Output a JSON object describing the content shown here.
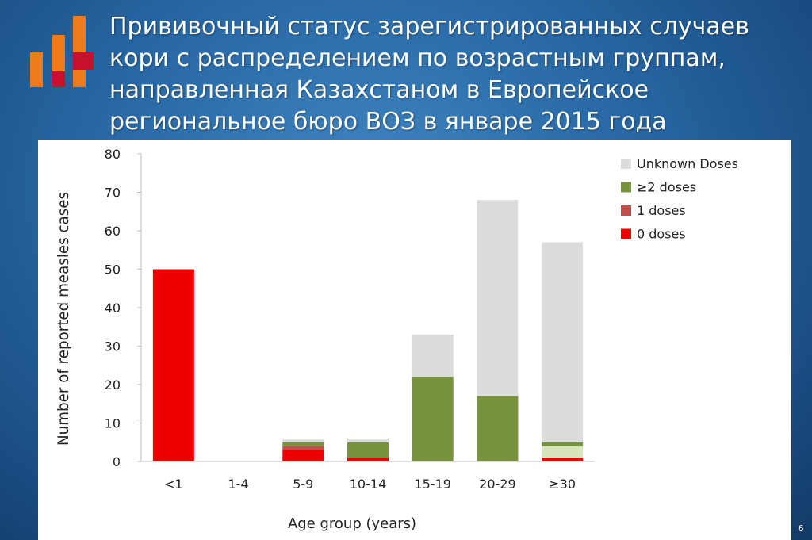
{
  "slide": {
    "title": "Прививочный статус зарегистрированных случаев кори с распределением по возрастным группам, направленная Казахстаном в Европейское региональное бюро ВОЗ  в январе 2015 года",
    "page_number": "6"
  },
  "colors": {
    "unknown": "#dcdcdc",
    "two_doses": "#77933c",
    "one_dose": "#c0504d",
    "zero_doses": "#ee0000",
    "light_green": "#d7e4bd",
    "axis": "#bfbfbf",
    "logo_orange": "#f07b1a",
    "logo_red": "#c8102e"
  },
  "chart_data": {
    "type": "bar",
    "stacked": true,
    "title": "",
    "xlabel": "Age group (years)",
    "ylabel": "Number of reported measles cases",
    "ylim": [
      0,
      80
    ],
    "yticks": [
      0,
      10,
      20,
      30,
      40,
      50,
      60,
      70,
      80
    ],
    "grid": false,
    "legend_position": "top-right",
    "categories": [
      "<1",
      "1-4",
      "5-9",
      "10-14",
      "15-19",
      "20-29",
      "≥30"
    ],
    "series": [
      {
        "name": "0 doses",
        "color": "#ee0000",
        "values": [
          50,
          0,
          3,
          1,
          0,
          0,
          1
        ]
      },
      {
        "name": "1 doses",
        "color": "#c0504d",
        "values": [
          0,
          0,
          1,
          0,
          0,
          0,
          0
        ]
      },
      {
        "name": "",
        "color": "#d7e4bd",
        "values": [
          0,
          0,
          0,
          0,
          0,
          0,
          3
        ]
      },
      {
        "name": "≥2 doses",
        "color": "#77933c",
        "values": [
          0,
          0,
          1,
          4,
          22,
          17,
          1
        ]
      },
      {
        "name": "Unknown Doses",
        "color": "#dcdcdc",
        "values": [
          0,
          0,
          1,
          1,
          11,
          51,
          52
        ]
      }
    ],
    "legend_order": [
      "Unknown Doses",
      "≥2 doses",
      "1 doses",
      "0 doses"
    ]
  }
}
